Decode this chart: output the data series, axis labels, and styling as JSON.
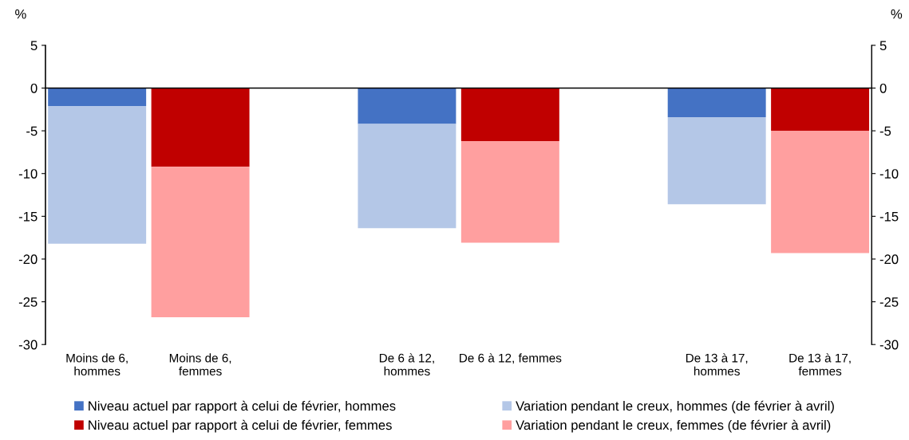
{
  "chart_data": {
    "type": "bar",
    "stacked": true,
    "ylabel": "%",
    "y2label": "%",
    "categories": [
      "Moins de 6,\nhommes",
      "Moins de 6,\nfemmes",
      null,
      "De 6 à 12,\nhommes",
      "De 6 à 12, femmes",
      null,
      "De 13 à 17,\nhommes",
      "De 13 à 17,\nfemmes"
    ],
    "series": [
      {
        "name": "Niveau actuel par rapport à celui de février, hommes",
        "color": "#4472c4",
        "values": [
          -2.1,
          null,
          null,
          -4.2,
          null,
          null,
          -3.4,
          null
        ]
      },
      {
        "name": "Variation pendant le creux, hommes (de février à avril)",
        "color": "#b4c7e7",
        "values": [
          -16.1,
          null,
          null,
          -12.2,
          null,
          null,
          -10.2,
          null
        ]
      },
      {
        "name": "Niveau actuel par rapport à celui de février, femmes",
        "color": "#c00000",
        "values": [
          null,
          -9.2,
          null,
          null,
          -6.2,
          null,
          null,
          -5.0
        ]
      },
      {
        "name": "Variation pendant le creux, femmes (de février à avril)",
        "color": "#ff9f9f",
        "values": [
          null,
          -17.6,
          null,
          null,
          -11.9,
          null,
          null,
          -14.3
        ]
      }
    ],
    "ylim": [
      -30,
      5
    ],
    "yticks": [
      -30,
      -25,
      -20,
      -15,
      -10,
      -5,
      0,
      5
    ],
    "y2lim": [
      -30,
      5
    ],
    "y2ticks": [
      -30,
      -25,
      -20,
      -15,
      -10,
      -5,
      0,
      5
    ],
    "ref_lines": [
      {
        "axis": "y",
        "value": 0,
        "color": "#000000"
      }
    ],
    "grid": false,
    "legend": "bottom"
  }
}
